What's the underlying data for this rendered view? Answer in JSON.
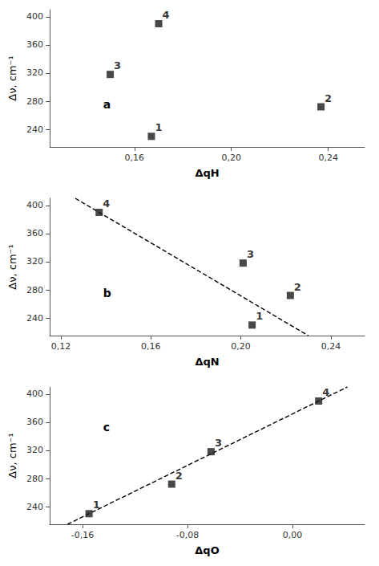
{
  "chart_data": [
    {
      "type": "scatter",
      "xlabel": "ΔqH",
      "ylabel": "Δν, cm⁻¹",
      "annotation": "a",
      "xlim": [
        0.125,
        0.255
      ],
      "ylim": [
        215,
        410
      ],
      "xticks": [
        {
          "value": 0.16,
          "label": "0,16"
        },
        {
          "value": 0.2,
          "label": "0,20"
        },
        {
          "value": 0.24,
          "label": "0,24"
        }
      ],
      "yticks": [
        240,
        280,
        320,
        360,
        400
      ],
      "grid": false,
      "series": [
        {
          "type": "scatter",
          "x": [
            0.167,
            0.15,
            0.237,
            0.17
          ],
          "values": [
            230,
            318,
            272,
            390
          ],
          "labels": [
            "1",
            "3",
            "2",
            "4"
          ],
          "marker": "square",
          "color": "#1a1a1a"
        }
      ]
    },
    {
      "type": "scatter",
      "xlabel": "ΔqN",
      "ylabel": "Δν, cm⁻¹",
      "annotation": "b",
      "xlim": [
        0.115,
        0.255
      ],
      "ylim": [
        215,
        410
      ],
      "xticks": [
        {
          "value": 0.12,
          "label": "0,12"
        },
        {
          "value": 0.16,
          "label": "0,16"
        },
        {
          "value": 0.2,
          "label": "0,20"
        },
        {
          "value": 0.24,
          "label": "0,24"
        }
      ],
      "yticks": [
        240,
        280,
        320,
        360,
        400
      ],
      "grid": false,
      "series": [
        {
          "type": "scatter",
          "x": [
            0.205,
            0.137,
            0.222,
            0.201
          ],
          "values": [
            230,
            390,
            272,
            318
          ],
          "labels": [
            "1",
            "4",
            "2",
            "3"
          ],
          "marker": "square",
          "color": "#1a1a1a"
        },
        {
          "type": "line",
          "x": [
            0.126375,
            0.22996875
          ],
          "values": [
            410,
            215
          ],
          "line_style": "dashed",
          "color": "#000000"
        }
      ]
    },
    {
      "type": "scatter",
      "xlabel": "ΔqO",
      "ylabel": "Δν, cm⁻¹",
      "annotation": "c",
      "xlim": [
        -0.185,
        0.055
      ],
      "ylim": [
        215,
        410
      ],
      "xticks": [
        {
          "value": -0.16,
          "label": "-0,16"
        },
        {
          "value": -0.08,
          "label": "-0,08"
        },
        {
          "value": 0.0,
          "label": "0,00"
        }
      ],
      "yticks": [
        240,
        280,
        320,
        360,
        400
      ],
      "grid": false,
      "series": [
        {
          "type": "scatter",
          "x": [
            -0.155,
            -0.092,
            -0.062,
            0.02
          ],
          "values": [
            230,
            272,
            318,
            390
          ],
          "labels": [
            "1",
            "2",
            "3",
            "4"
          ],
          "marker": "square",
          "color": "#1a1a1a"
        },
        {
          "type": "line",
          "x": [
            -0.17140625,
            0.041875
          ],
          "values": [
            215,
            410
          ],
          "line_style": "dashed",
          "color": "#000000"
        }
      ]
    }
  ]
}
